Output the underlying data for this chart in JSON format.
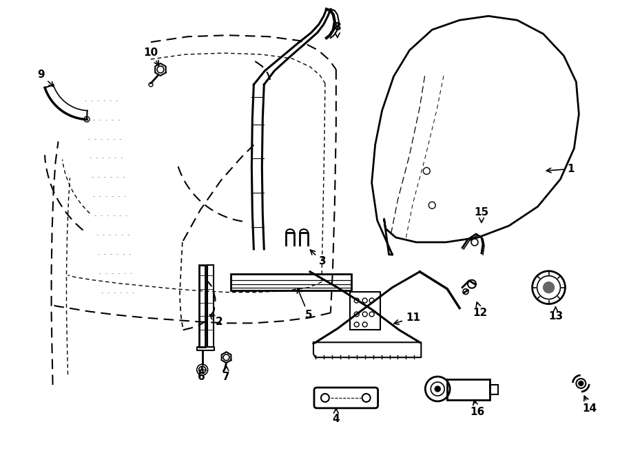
{
  "background_color": "#ffffff",
  "line_color": "#000000",
  "figsize": [
    9.0,
    6.61
  ],
  "dpi": 100,
  "annotations": [
    [
      "1",
      830,
      245,
      790,
      248
    ],
    [
      "2",
      318,
      468,
      300,
      455
    ],
    [
      "3",
      468,
      380,
      447,
      360
    ],
    [
      "4",
      488,
      610,
      488,
      590
    ],
    [
      "5",
      448,
      458,
      430,
      415
    ],
    [
      "6",
      292,
      548,
      292,
      532
    ],
    [
      "7",
      328,
      548,
      328,
      528
    ],
    [
      "8",
      490,
      38,
      490,
      58
    ],
    [
      "9",
      58,
      108,
      80,
      128
    ],
    [
      "10",
      218,
      75,
      232,
      98
    ],
    [
      "11",
      600,
      462,
      568,
      472
    ],
    [
      "12",
      698,
      455,
      692,
      435
    ],
    [
      "13",
      808,
      460,
      808,
      442
    ],
    [
      "14",
      858,
      595,
      848,
      572
    ],
    [
      "15",
      700,
      308,
      700,
      328
    ],
    [
      "16",
      694,
      600,
      688,
      578
    ]
  ]
}
